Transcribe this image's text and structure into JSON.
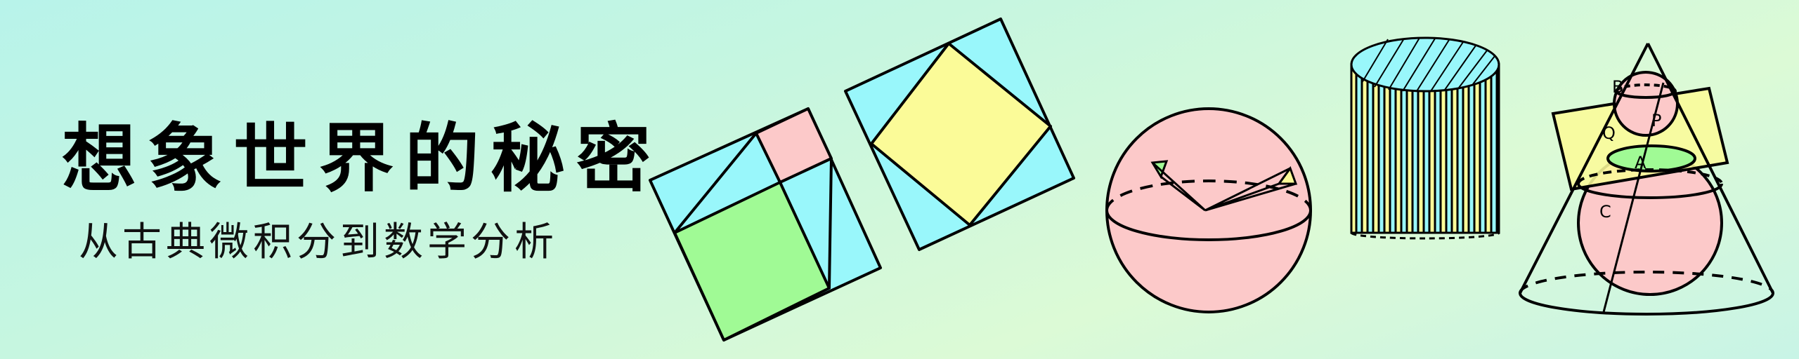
{
  "banner": {
    "title": "想象世界的秘密",
    "subtitle": "从古典微积分到数学分析"
  },
  "figures": {
    "dandelin_labels": {
      "B": "B",
      "P": "P",
      "Q": "Q",
      "A": "A",
      "C": "C"
    }
  },
  "colors": {
    "background": "#c6f6e0",
    "cyan": "#99f7fb",
    "pink": "#fcc9c9",
    "green": "#a0fa95",
    "yellow": "#fbfb98",
    "stroke": "#000000"
  }
}
